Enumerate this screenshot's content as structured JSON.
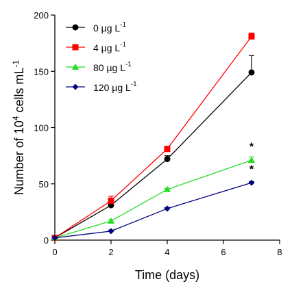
{
  "chart_data": {
    "type": "line",
    "xlabel": "Time (days)",
    "ylabel_parts": {
      "pre": "Number of 10",
      "sup": "4",
      "post": " cells mL",
      "sup2": "-1"
    },
    "xlim": [
      0,
      8
    ],
    "ylim": [
      0,
      200
    ],
    "x_ticks": [
      "0",
      "2",
      "4",
      "6",
      "8"
    ],
    "y_ticks": [
      "0",
      "50",
      "100",
      "150",
      "200"
    ],
    "x": [
      0,
      2,
      4,
      7
    ],
    "legend_position": "top-left",
    "grid": false,
    "series": [
      {
        "name_main": "0 µg L",
        "name_sup": "-1",
        "color": "#000000",
        "marker": "circle",
        "values": [
          2,
          31,
          72,
          149
        ],
        "errors": [
          0,
          2,
          3,
          15
        ]
      },
      {
        "name_main": "4 µg L",
        "name_sup": "-1",
        "color": "#ff0000",
        "marker": "square",
        "values": [
          2,
          35,
          81,
          181
        ],
        "errors": [
          0,
          4,
          1,
          3
        ]
      },
      {
        "name_main": "80 µg L",
        "name_sup": "-1",
        "color": "#22dd22",
        "marker": "triangle",
        "values": [
          2,
          17,
          45,
          71
        ],
        "errors": [
          0,
          1,
          1,
          3
        ]
      },
      {
        "name_main": "120 µg L",
        "name_sup": "-1",
        "color": "#000080",
        "marker": "diamond",
        "values": [
          2,
          8,
          28,
          51
        ],
        "errors": [
          0,
          1,
          1,
          1
        ]
      }
    ],
    "annotations": [
      {
        "text": "*",
        "x": 7,
        "y": 80
      },
      {
        "text": "*",
        "x": 7,
        "y": 60
      }
    ]
  }
}
